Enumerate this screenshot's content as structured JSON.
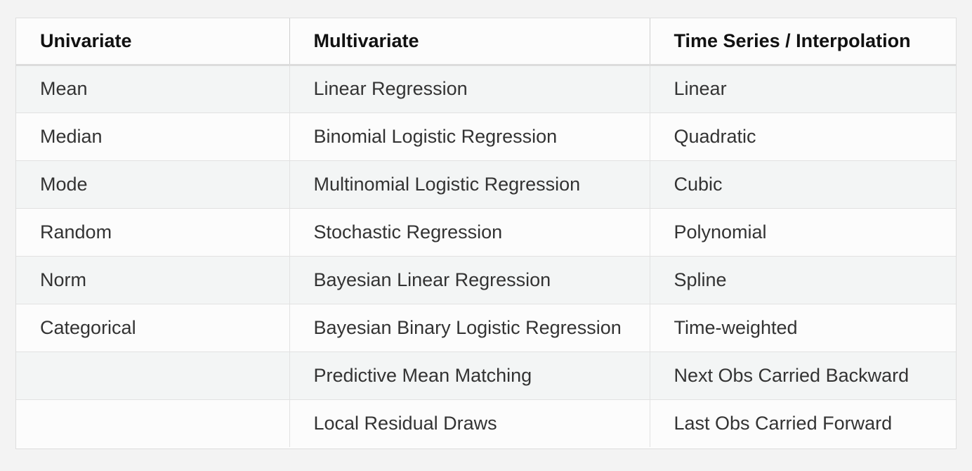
{
  "table": {
    "headers": [
      "Univariate",
      "Multivariate",
      "Time Series / Interpolation"
    ],
    "rows": [
      [
        "Mean",
        "Linear Regression",
        "Linear"
      ],
      [
        "Median",
        "Binomial Logistic Regression",
        "Quadratic"
      ],
      [
        "Mode",
        "Multinomial Logistic Regression",
        "Cubic"
      ],
      [
        "Random",
        "Stochastic Regression",
        "Polynomial"
      ],
      [
        "Norm",
        "Bayesian Linear Regression",
        "Spline"
      ],
      [
        "Categorical",
        "Bayesian Binary Logistic Regression",
        "Time-weighted"
      ],
      [
        "",
        "Predictive Mean Matching",
        "Next Obs Carried Backward"
      ],
      [
        "",
        "Local Residual Draws",
        "Last Obs Carried Forward"
      ]
    ]
  }
}
